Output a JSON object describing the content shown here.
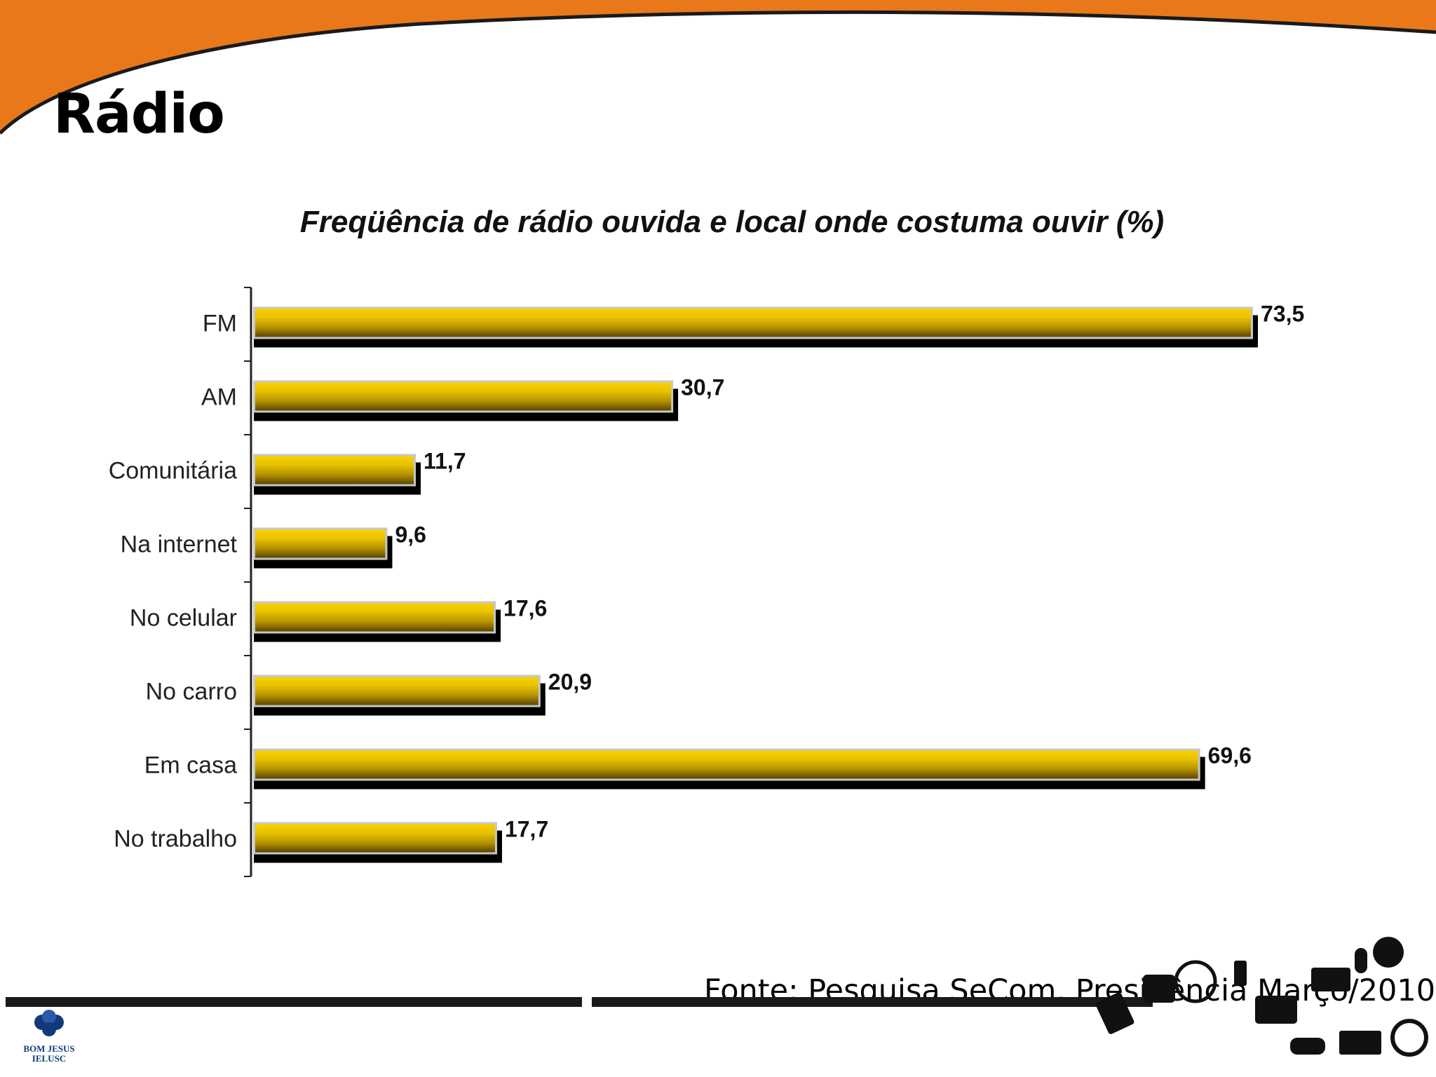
{
  "slide": {
    "title": "Rádio",
    "source": "Fonte: Pesquisa SeCom. Presidência Março/2010",
    "logo": {
      "line1": "BOM JESUS",
      "line2": "IELUSC"
    },
    "colors": {
      "header": "#e8781a",
      "bar": "#e8c000",
      "bar_dark": "#6b5200",
      "shadow": "#000000",
      "frame": "#c7c7c7"
    }
  },
  "chart_data": {
    "type": "bar",
    "orientation": "horizontal",
    "title": "Freqüência de rádio ouvida e local onde costuma ouvir (%)",
    "categories": [
      "FM",
      "AM",
      "Comunitária",
      "Na internet",
      "No celular",
      "No carro",
      "Em casa",
      "No trabalho"
    ],
    "values": [
      73.5,
      30.7,
      11.7,
      9.6,
      17.6,
      20.9,
      69.6,
      17.7
    ],
    "value_labels": [
      "73,5",
      "30,7",
      "11,7",
      "9,6",
      "17,6",
      "20,9",
      "69,6",
      "17,7"
    ],
    "xlim": [
      0,
      73.5
    ],
    "grid": false,
    "legend": "none"
  }
}
